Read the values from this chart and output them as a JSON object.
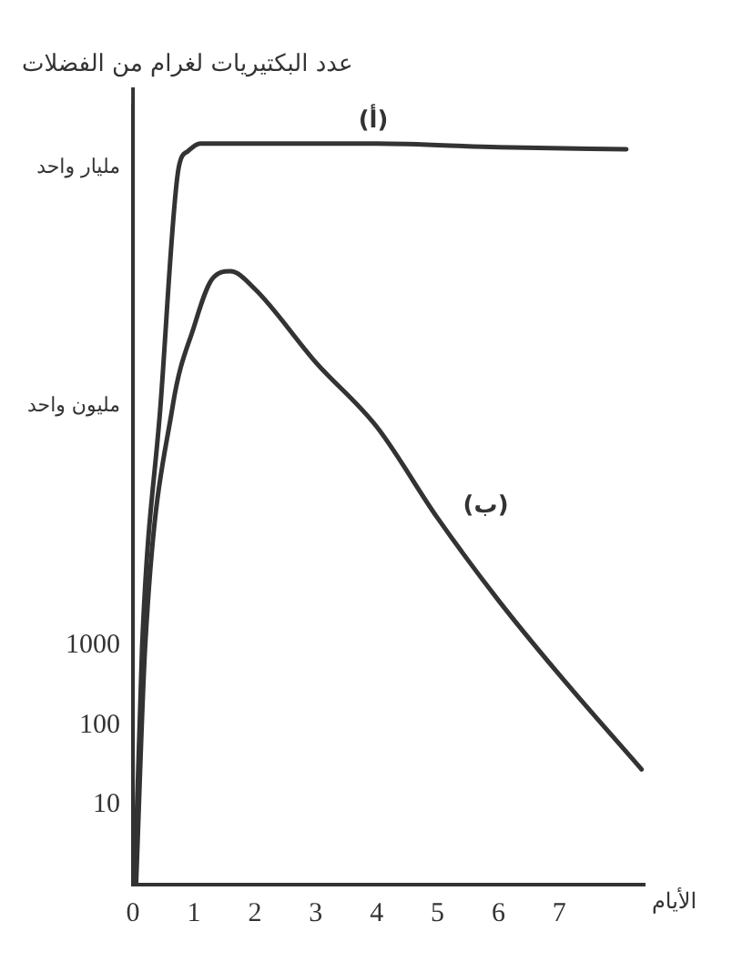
{
  "chart_data": {
    "type": "line",
    "xlabel": "الأيام",
    "ylabel": "عدد البكتيريات لغرام من الفضلات",
    "log": "y",
    "grid": false,
    "legend": false,
    "marker": "none",
    "line_style": "solid",
    "xlim": [
      0,
      8.4
    ],
    "xticks": [
      0,
      1,
      2,
      3,
      4,
      5,
      6,
      7
    ],
    "ylim": [
      1,
      6000000000
    ],
    "yticks": [
      {
        "value": 1,
        "label": null
      },
      10,
      100,
      1000,
      {
        "value": 1000000,
        "label": "مليون واحد"
      },
      {
        "value": 1000000000,
        "label": "مليار واحد"
      }
    ],
    "series": [
      {
        "name": "(أ)",
        "color": "#333333",
        "x": [
          0.03,
          0.15,
          0.45,
          0.75,
          0.9,
          1.1,
          2,
          4,
          6,
          8.1
        ],
        "values": [
          1,
          1000,
          1000000,
          1000000000,
          1600000000,
          2000000000,
          2000000000,
          2000000000,
          1800000000,
          1700000000
        ]
      },
      {
        "name": "(ب)",
        "color": "#333333",
        "x": [
          0.05,
          0.2,
          0.65,
          1.0,
          1.3,
          1.6,
          2,
          3,
          4,
          5,
          6,
          7,
          8.35
        ],
        "values": [
          1,
          1000,
          1000000,
          10000000,
          40000000,
          50000000,
          30000000,
          3600000,
          560000,
          40000,
          3700,
          430,
          28
        ]
      }
    ]
  }
}
